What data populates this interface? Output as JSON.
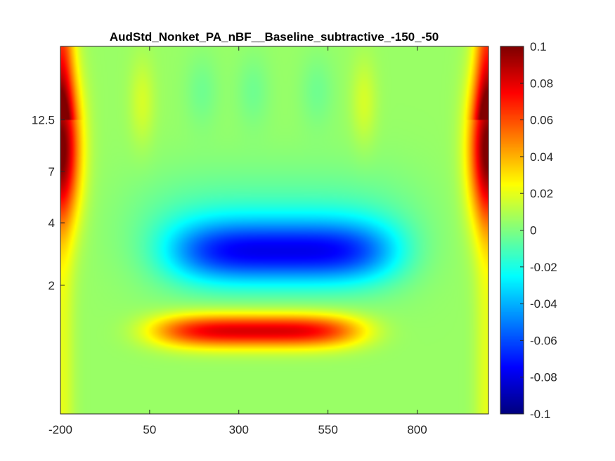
{
  "chart_data": {
    "type": "heatmap",
    "title": "AudStd_Nonket_PA_nBF__Baseline_subtractive_-150_-50",
    "xlabel": "",
    "ylabel": "",
    "x_ticks": [
      -200,
      50,
      300,
      550,
      800
    ],
    "x_tick_labels": [
      "-200",
      "50",
      "300",
      "550",
      "800"
    ],
    "xlim": [
      -200,
      1000
    ],
    "y_tick_labels_top_to_bottom": [
      "12.5",
      "7",
      "4",
      "2"
    ],
    "y_scale": "log",
    "colormap": "jet",
    "colorbar": {
      "limits": [
        -0.1,
        0.1
      ],
      "ticks": [
        0.1,
        0.08,
        0.06,
        0.04,
        0.02,
        0,
        -0.02,
        -0.04,
        -0.06,
        -0.08,
        -0.1
      ],
      "tick_labels": [
        "0.1",
        "0.08",
        "0.06",
        "0.04",
        "0.02",
        "0",
        "-0.02",
        "-0.04",
        "-0.06",
        "-0.08",
        "-0.1"
      ]
    },
    "features": [
      {
        "name": "edge-left",
        "time": -195,
        "freq": 9.5,
        "value": 0.07
      },
      {
        "name": "edge-right",
        "time": 995,
        "freq": 9.5,
        "value": 0.07
      },
      {
        "name": "blue-trough",
        "time": 400,
        "freq": 3.0,
        "value": -0.065
      },
      {
        "name": "red-ridge",
        "time": 360,
        "freq": 1.1,
        "value": 0.07
      }
    ]
  }
}
